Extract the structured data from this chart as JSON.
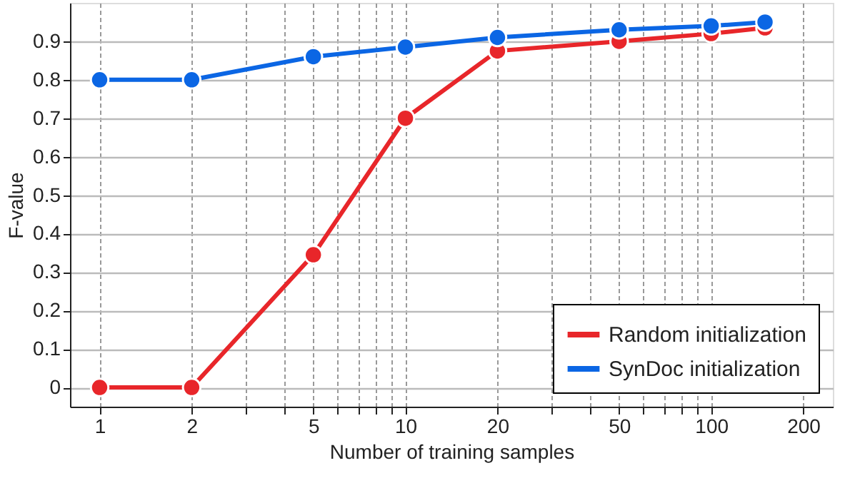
{
  "chart_data": {
    "type": "line",
    "xlabel": "Number of training samples",
    "ylabel": "F-value",
    "x": [
      1,
      2,
      5,
      10,
      20,
      50,
      100,
      150
    ],
    "series": [
      {
        "name": "Random initialization",
        "color": "#e8262a",
        "values": [
          0,
          0,
          0.345,
          0.7,
          0.875,
          0.9,
          0.92,
          0.935
        ]
      },
      {
        "name": "SynDoc initialization",
        "color": "#0b66e4",
        "values": [
          0.8,
          0.8,
          0.86,
          0.885,
          0.91,
          0.93,
          0.94,
          0.95
        ]
      }
    ],
    "log": "x",
    "xlim": [
      0.8,
      250
    ],
    "ylim": [
      -0.05,
      1.0
    ],
    "xticks": [
      1,
      2,
      {
        "value": 3,
        "label": null
      },
      {
        "value": 4,
        "label": null
      },
      5,
      {
        "value": 6,
        "label": null
      },
      {
        "value": 7,
        "label": null
      },
      {
        "value": 8,
        "label": null
      },
      {
        "value": 9,
        "label": null
      },
      10,
      20,
      {
        "value": 30,
        "label": null
      },
      {
        "value": 40,
        "label": null
      },
      50,
      {
        "value": 60,
        "label": null
      },
      {
        "value": 70,
        "label": null
      },
      {
        "value": 80,
        "label": null
      },
      {
        "value": 90,
        "label": null
      },
      100,
      200
    ],
    "yticks": [
      0,
      0.1,
      0.2,
      0.3,
      0.4,
      0.5,
      0.6,
      0.7,
      0.8,
      0.9
    ],
    "grid": true,
    "legend": "bottom right",
    "marker": "circle",
    "line_style": "solid"
  }
}
